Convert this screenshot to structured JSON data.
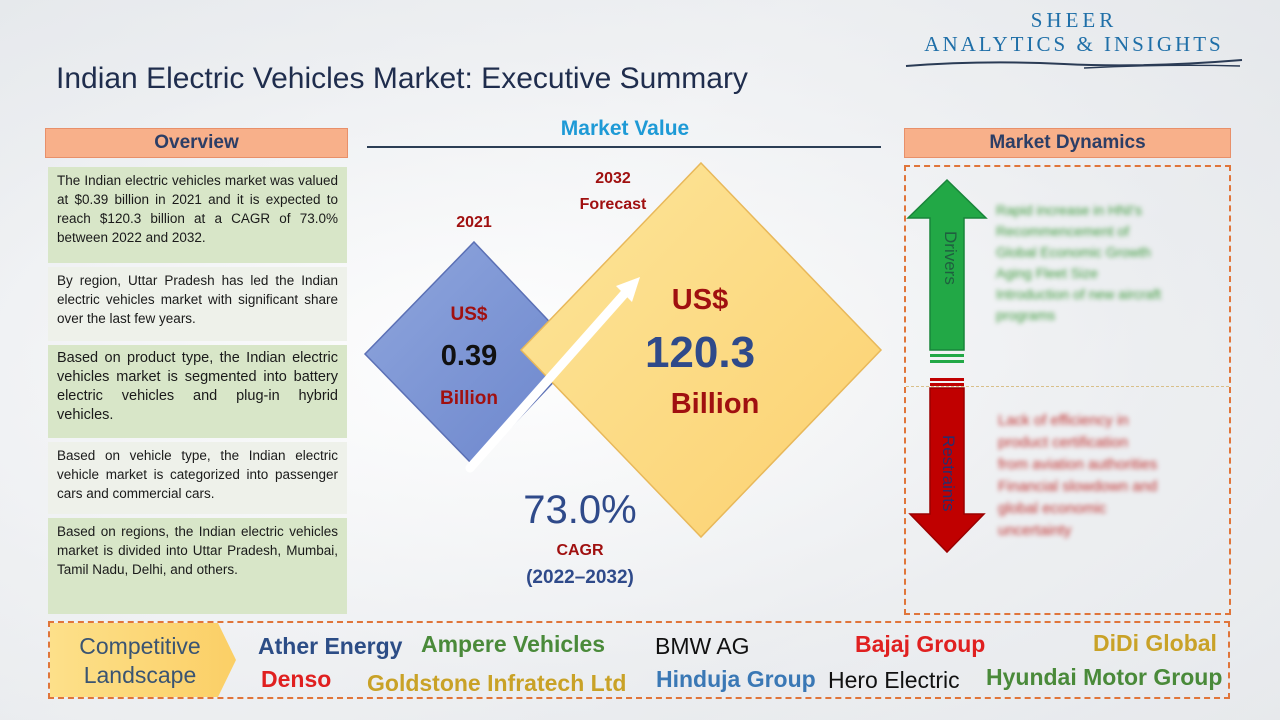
{
  "logo": {
    "line1": "SHEER",
    "line2": "ANALYTICS & INSIGHTS"
  },
  "title": "Indian Electric Vehicles Market: Executive Summary",
  "overview": {
    "header": "Overview",
    "paragraphs": [
      "The Indian electric vehicles market was valued at $0.39 billion in 2021 and it is expected to reach $120.3 billion at a CAGR of 73.0% between 2022 and 2032.",
      "By region, Uttar Pradesh has led the Indian electric vehicles market with significant share over the last few years.",
      "Based on product type, the Indian electric vehicles market is segmented into battery electric vehicles and plug-in hybrid vehicles.",
      "Based on vehicle type, the Indian electric vehicle market is categorized into passenger cars and commercial cars.",
      "Based on regions, the Indian electric vehicles market is divided into Uttar Pradesh, Mumbai, Tamil Nadu, Delhi, and others."
    ]
  },
  "market_value": {
    "header": "Market Value",
    "start_year": "2021",
    "start_currency": "US$",
    "start_value": "0.39",
    "start_unit": "Billion",
    "forecast_year": "2032",
    "forecast_label": "Forecast",
    "forecast_currency": "US$",
    "forecast_value": "120.3",
    "forecast_unit": "Billion",
    "cagr_value": "73.0%",
    "cagr_label": "CAGR",
    "cagr_period": "(2022–2032)"
  },
  "market_dynamics": {
    "header": "Market Dynamics",
    "drivers_label": "Drivers",
    "restraints_label": "Restraints",
    "drivers": [
      "Rapid increase in HNI's",
      "Recommencement of",
      "Global Economic Growth",
      "Aging Fleet Size",
      "Introduction of new aircraft",
      "programs"
    ],
    "restraints": [
      "Lack of efficiency in",
      "product certification",
      "from aviation authorities",
      "Financial slowdown and",
      "global economic",
      "uncertainty"
    ]
  },
  "competitive_landscape": {
    "label_line1": "Competitive",
    "label_line2": "Landscape",
    "companies": [
      "Ather Energy",
      "Ampere Vehicles",
      "BMW AG",
      "Bajaj Group",
      "DiDi Global",
      "Denso",
      "Goldstone Infratech Ltd",
      "Hinduja Group",
      "Hero Electric",
      "Hyundai Motor Group"
    ]
  },
  "colors": {
    "title": "#1f2d4d",
    "accent_blue": "#1e9ad6",
    "header_fill": "#f8b08a",
    "dark_red": "#a01010",
    "driver_green": "#22a846",
    "restraint_red": "#c00000",
    "dashed_orange": "#e0753a"
  }
}
